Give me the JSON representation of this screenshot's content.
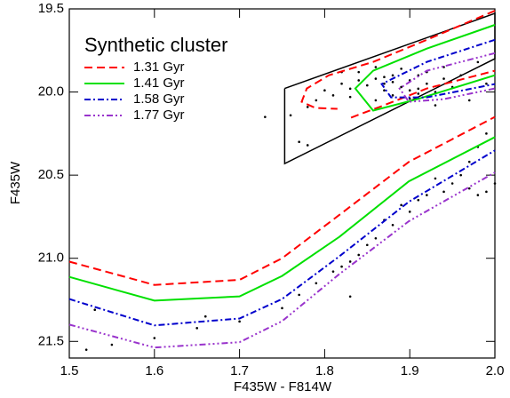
{
  "chart_data": {
    "type": "scatter",
    "xlabel": "F435W - F814W",
    "ylabel": "F435W",
    "xlim": [
      1.5,
      2.0
    ],
    "ylim": [
      19.5,
      21.6
    ],
    "y_inverted": true,
    "xticks": [
      1.5,
      1.6,
      1.7,
      1.8,
      1.9,
      {
        "value": 2.0,
        "label": "2.0"
      }
    ],
    "yticks": [
      19.5,
      {
        "value": 20.0,
        "label": "20.0"
      },
      20.5,
      {
        "value": 21.0,
        "label": "21.0"
      },
      21.5
    ],
    "legend_title": "Synthetic cluster",
    "legend": "upper left",
    "points": {
      "color": "#000000",
      "x": [
        1.86,
        1.87,
        1.88,
        1.89,
        1.9,
        1.91,
        1.92,
        1.93,
        1.88,
        1.87,
        1.85,
        1.84,
        1.83,
        1.82,
        1.81,
        1.8,
        1.79,
        1.78,
        1.9,
        1.91,
        1.92,
        1.94,
        1.95,
        1.96,
        1.89,
        1.86,
        1.84,
        1.97,
        1.93,
        1.86,
        1.83,
        1.88,
        1.9,
        1.91,
        1.87,
        1.82,
        1.94,
        1.98,
        1.99,
        1.76,
        1.73,
        1.77,
        1.78,
        1.99,
        1.98,
        1.97,
        1.96,
        1.95,
        1.94,
        1.93,
        1.92,
        1.91,
        1.9,
        1.89,
        1.88,
        1.87,
        1.86,
        1.85,
        1.84,
        1.83,
        1.82,
        1.81,
        1.79,
        1.77,
        1.75,
        1.7,
        1.65,
        1.6,
        1.55,
        1.52,
        1.53,
        1.66,
        1.83,
        1.97,
        1.98,
        1.99,
        2.0
      ],
      "y": [
        19.92,
        19.95,
        19.9,
        19.97,
        19.93,
        19.98,
        19.95,
        20.0,
        20.02,
        19.99,
        19.96,
        19.93,
        19.98,
        19.95,
        20.02,
        19.99,
        20.05,
        20.09,
        20.04,
        19.9,
        19.88,
        19.92,
        19.97,
        19.9,
        19.86,
        19.85,
        19.88,
        20.05,
        20.08,
        20.05,
        20.03,
        19.94,
        19.99,
        20.01,
        19.91,
        19.88,
        19.85,
        19.82,
        19.95,
        20.14,
        20.15,
        20.3,
        20.32,
        20.25,
        20.33,
        20.42,
        20.5,
        20.55,
        20.6,
        20.52,
        20.62,
        20.65,
        20.72,
        20.68,
        20.8,
        20.77,
        20.88,
        20.92,
        20.98,
        21.02,
        21.05,
        21.08,
        21.15,
        21.22,
        21.3,
        21.38,
        21.42,
        21.48,
        21.52,
        21.55,
        21.31,
        21.35,
        21.23,
        20.58,
        20.62,
        20.6,
        20.55
      ]
    },
    "selection_box": {
      "color": "#000000",
      "x": [
        1.753,
        1.753,
        2.0,
        2.0,
        1.753
      ],
      "y": [
        19.979,
        20.431,
        19.8,
        19.527,
        19.979
      ]
    },
    "series": [
      {
        "name": "1.31 Gyr",
        "color": "#ff0000",
        "dash": "9,5",
        "x": [
          1.5,
          1.6,
          1.7,
          1.75,
          1.817,
          1.899,
          2.0,
          null,
          2.0,
          1.92,
          1.857,
          1.805,
          1.779,
          1.773,
          1.789,
          1.815,
          null,
          1.831,
          1.867,
          1.92,
          2.0
        ],
        "y": [
          21.02,
          21.16,
          21.13,
          21.0,
          20.74,
          20.42,
          20.15,
          null,
          19.511,
          19.686,
          19.819,
          19.899,
          19.979,
          20.059,
          20.096,
          20.101,
          null,
          20.154,
          20.085,
          19.979,
          19.872
        ]
      },
      {
        "name": "1.41 Gyr",
        "color": "#00e000",
        "dash": "none",
        "x": [
          1.5,
          1.6,
          1.7,
          1.75,
          1.817,
          1.899,
          2.0,
          null,
          2.0,
          1.92,
          1.857,
          1.836,
          1.857,
          1.909,
          2.0
        ],
        "y": [
          21.112,
          21.255,
          21.229,
          21.106,
          20.872,
          20.537,
          20.271,
          null,
          19.596,
          19.739,
          19.872,
          19.979,
          20.112,
          20.043,
          19.899
        ]
      },
      {
        "name": "1.58 Gyr",
        "color": "#0000cc",
        "dash": "7,3,2,3",
        "x": [
          1.5,
          1.6,
          1.7,
          1.75,
          1.817,
          1.899,
          2.0,
          null,
          2.0,
          1.92,
          1.867,
          1.878,
          1.92,
          2.0
        ],
        "y": [
          21.245,
          21.404,
          21.362,
          21.245,
          20.989,
          20.66,
          20.351,
          null,
          19.686,
          19.819,
          19.952,
          20.032,
          20.032,
          19.952
        ]
      },
      {
        "name": "1.77 Gyr",
        "color": "#9933cc",
        "dash": "7,3,2,3,2,3,2,3",
        "x": [
          1.5,
          1.6,
          1.7,
          1.75,
          1.817,
          1.899,
          2.0,
          null,
          2.0,
          1.92,
          1.888,
          1.899,
          1.94,
          2.0
        ],
        "y": [
          21.399,
          21.537,
          21.505,
          21.378,
          21.096,
          20.777,
          20.484,
          null,
          19.766,
          19.872,
          19.979,
          20.059,
          20.043,
          19.979
        ]
      }
    ]
  }
}
